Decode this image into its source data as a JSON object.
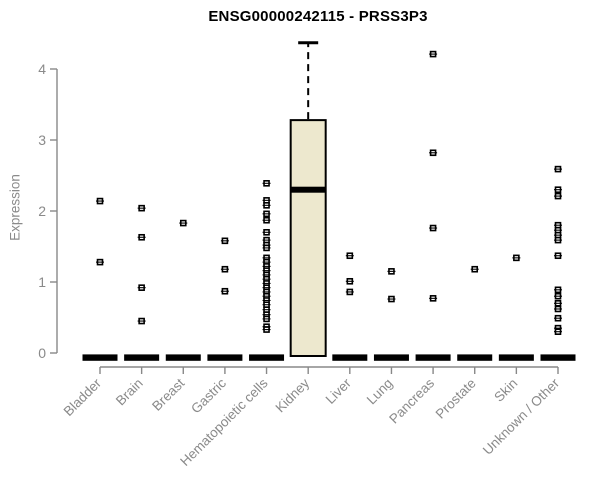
{
  "colors": {
    "box_fill": "#EDE8CE",
    "box_stroke": "#000000",
    "axis_gray": "#888888",
    "label_gray": "#8a8a8a",
    "title_color": "#000000",
    "point_color": "#000000",
    "background": "#ffffff"
  },
  "chart_data": {
    "type": "boxplot",
    "title": "ENSG00000242115 - PRSS3P3",
    "xlabel": "",
    "ylabel": "Expression",
    "ylim": [
      0,
      4.4
    ],
    "yticks": [
      0,
      1,
      2,
      3,
      4
    ],
    "grid": false,
    "legend": "none",
    "categories": [
      "Bladder",
      "Brain",
      "Breast",
      "Gastric",
      "Hematopoietic cells",
      "Kidney",
      "Liver",
      "Lung",
      "Pancreas",
      "Prostate",
      "Skin",
      "Unknown / Other"
    ],
    "boxes": [
      {
        "category": "Bladder",
        "q1": 0,
        "median": 0,
        "q3": 0,
        "whisker_low": 0,
        "whisker_high": 0,
        "outliers": [
          2.14,
          1.28
        ]
      },
      {
        "category": "Brain",
        "q1": 0,
        "median": 0,
        "q3": 0,
        "whisker_low": 0,
        "whisker_high": 0,
        "outliers": [
          2.04,
          1.63,
          0.92,
          0.45
        ]
      },
      {
        "category": "Breast",
        "q1": 0,
        "median": 0,
        "q3": 0,
        "whisker_low": 0,
        "whisker_high": 0,
        "outliers": [
          1.83
        ]
      },
      {
        "category": "Gastric",
        "q1": 0,
        "median": 0,
        "q3": 0,
        "whisker_low": 0,
        "whisker_high": 0,
        "outliers": [
          1.58,
          1.18,
          0.87
        ]
      },
      {
        "category": "Hematopoietic cells",
        "q1": 0,
        "median": 0,
        "q3": 0,
        "whisker_low": 0,
        "whisker_high": 0,
        "outliers": [
          2.39,
          2.15,
          2.08,
          1.96,
          1.87,
          1.7,
          1.59,
          1.52,
          1.48,
          1.34,
          1.28,
          1.22,
          1.16,
          1.1,
          1.04,
          0.98,
          0.92,
          0.86,
          0.8,
          0.74,
          0.68,
          0.61,
          0.54,
          0.48,
          0.37,
          0.33
        ]
      },
      {
        "category": "Kidney",
        "q1": 0,
        "median": 2.3,
        "q3": 3.28,
        "whisker_low": 0,
        "whisker_high": 4.37,
        "outliers": []
      },
      {
        "category": "Liver",
        "q1": 0,
        "median": 0,
        "q3": 0,
        "whisker_low": 0,
        "whisker_high": 0,
        "outliers": [
          1.37,
          1.01,
          0.86
        ]
      },
      {
        "category": "Lung",
        "q1": 0,
        "median": 0,
        "q3": 0,
        "whisker_low": 0,
        "whisker_high": 0,
        "outliers": [
          1.15,
          0.76
        ]
      },
      {
        "category": "Pancreas",
        "q1": 0,
        "median": 0,
        "q3": 0,
        "whisker_low": 0,
        "whisker_high": 0,
        "outliers": [
          4.21,
          2.82,
          1.76,
          0.77
        ]
      },
      {
        "category": "Prostate",
        "q1": 0,
        "median": 0,
        "q3": 0,
        "whisker_low": 0,
        "whisker_high": 0,
        "outliers": [
          1.18
        ]
      },
      {
        "category": "Skin",
        "q1": 0,
        "median": 0,
        "q3": 0,
        "whisker_low": 0,
        "whisker_high": 0,
        "outliers": [
          1.34
        ]
      },
      {
        "category": "Unknown / Other",
        "q1": 0,
        "median": 0,
        "q3": 0,
        "whisker_low": 0,
        "whisker_high": 0,
        "outliers": [
          2.59,
          2.3,
          2.21,
          1.8,
          1.73,
          1.66,
          1.59,
          1.37,
          0.89,
          0.8,
          0.7,
          0.62,
          0.49,
          0.35,
          0.3
        ]
      }
    ]
  }
}
